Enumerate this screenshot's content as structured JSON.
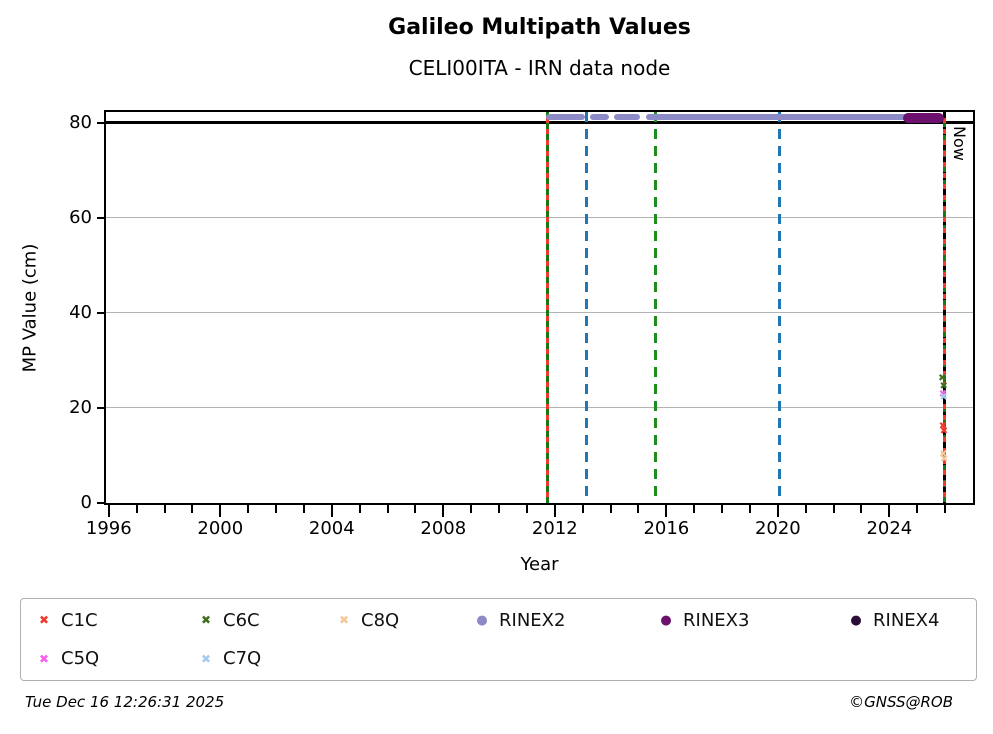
{
  "header": {
    "title": "Galileo Multipath Values",
    "subtitle": "CELI00ITA - IRN data node"
  },
  "footer": {
    "timestamp": "Tue Dec 16 12:26:31 2025",
    "credit": "©GNSS@ROB"
  },
  "chart_data": {
    "type": "scatter",
    "title": "Galileo Multipath Values",
    "subtitle": "CELI00ITA - IRN data node",
    "xlabel": "Year",
    "ylabel": "MP Value (cm)",
    "xlim": [
      1995.9,
      2027.0
    ],
    "ylim": [
      0,
      82.3
    ],
    "x_major_ticks": [
      1996,
      2000,
      2004,
      2008,
      2012,
      2016,
      2020,
      2024
    ],
    "x_minor_tick_years": [
      1997,
      1998,
      1999,
      2001,
      2002,
      2003,
      2005,
      2006,
      2007,
      2009,
      2010,
      2011,
      2013,
      2014,
      2015,
      2017,
      2018,
      2019,
      2021,
      2022,
      2023,
      2025,
      2026
    ],
    "y_ticks": [
      0,
      20,
      40,
      60,
      80
    ],
    "y_gridlines": [
      20,
      40,
      60
    ],
    "grid_color": "#b3b3b3",
    "grid_on": true,
    "legend_position": "bottom",
    "cap_line": {
      "y": 80,
      "color": "#000000"
    },
    "now_marker": {
      "x": 2025.96,
      "label": "Now"
    },
    "vertical_lines": [
      {
        "x": 2011.72,
        "color": "#187818",
        "style": "solid"
      },
      {
        "x": 2011.72,
        "color": "#ee3b2c",
        "style": "dashed-alt"
      },
      {
        "x": 2013.15,
        "color": "#1f77b4",
        "style": "dashed"
      },
      {
        "x": 2015.6,
        "color": "#1e8c1e",
        "style": "dashed"
      },
      {
        "x": 2020.05,
        "color": "#1f77b4",
        "style": "dashed"
      },
      {
        "x": 2025.96,
        "color": "#187818",
        "style": "solid"
      },
      {
        "x": 2025.96,
        "color": "#000000",
        "style": "dashed-now"
      },
      {
        "x": 2025.96,
        "color": "#ee3b2c",
        "style": "dashed-alt"
      }
    ],
    "rinex_lines": [
      {
        "name": "RINEX2",
        "color": "#8d8bc7",
        "y": 81.2,
        "thickness": 6,
        "segments": [
          [
            2011.7,
            2013.08
          ],
          [
            2013.25,
            2013.94
          ],
          [
            2014.11,
            2015.05
          ],
          [
            2015.26,
            2025.9
          ]
        ]
      },
      {
        "name": "RINEX3",
        "color": "#6c116e",
        "y": 81.0,
        "thickness": 10,
        "segments": [
          [
            2024.48,
            2025.96
          ]
        ]
      }
    ],
    "points": [
      {
        "signal": "C5Q",
        "x": 2025.92,
        "y": 22.8
      },
      {
        "signal": "C7Q",
        "x": 2025.95,
        "y": 22.0
      },
      {
        "signal": "C6C",
        "x": 2025.9,
        "y": 26.0
      },
      {
        "signal": "C6C",
        "x": 2025.95,
        "y": 24.5
      },
      {
        "signal": "C1C",
        "x": 2025.92,
        "y": 16.0
      },
      {
        "signal": "C1C",
        "x": 2025.96,
        "y": 15.0
      },
      {
        "signal": "C8Q",
        "x": 2025.93,
        "y": 10.0
      },
      {
        "signal": "C8Q",
        "x": 2025.97,
        "y": 9.0
      }
    ],
    "signal_colors": {
      "C1C": "#ee3b2c",
      "C6C": "#41701f",
      "C8Q": "#f4c99c",
      "C5Q": "#f55ff0",
      "C7Q": "#a6cbee",
      "RINEX2": "#8d8bc7",
      "RINEX3": "#6c116e",
      "RINEX4": "#2a0d38"
    }
  },
  "legend": {
    "items": [
      {
        "label": "C1C",
        "marker": "x",
        "color": "#ee3b2c"
      },
      {
        "label": "C6C",
        "marker": "x",
        "color": "#41701f"
      },
      {
        "label": "C8Q",
        "marker": "x",
        "color": "#f4c99c"
      },
      {
        "label": "RINEX2",
        "marker": "circle",
        "color": "#8d8bc7"
      },
      {
        "label": "RINEX3",
        "marker": "circle",
        "color": "#6c116e"
      },
      {
        "label": "RINEX4",
        "marker": "circle",
        "color": "#2a0d38"
      },
      {
        "label": "C5Q",
        "marker": "x",
        "color": "#f55ff0"
      },
      {
        "label": "C7Q",
        "marker": "x",
        "color": "#a6cbee"
      }
    ]
  }
}
